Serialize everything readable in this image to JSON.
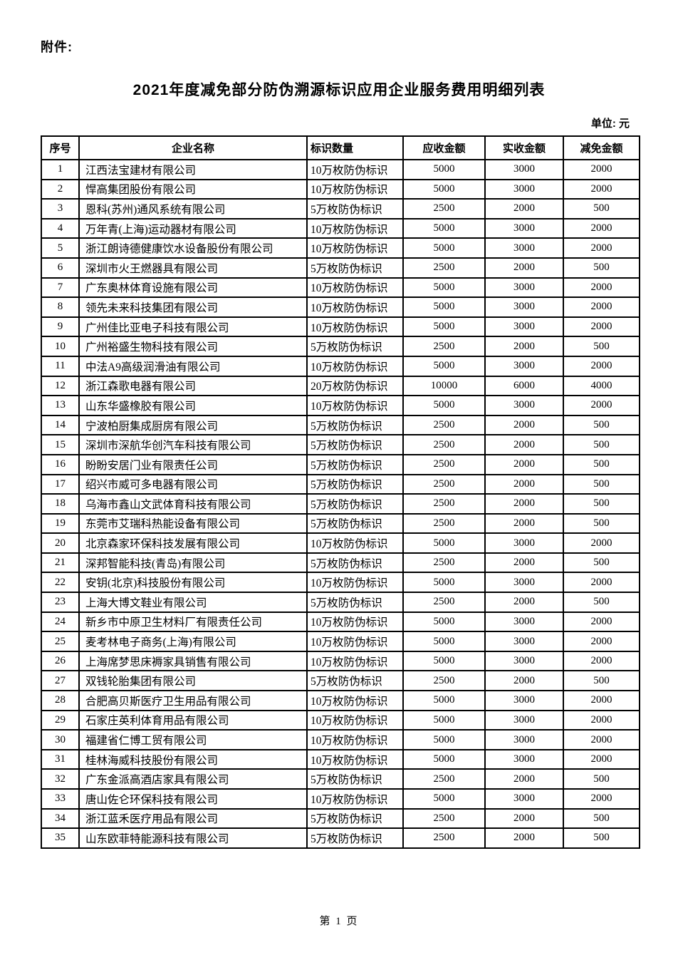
{
  "document": {
    "attachment_label": "附件:",
    "title": "2021年度减免部分防伪溯源标识应用企业服务费用明细列表",
    "unit_label": "单位: 元",
    "footer": "第 1 页"
  },
  "table": {
    "columns": [
      "序号",
      "企业名称",
      "标识数量",
      "应收金额",
      "实收金额",
      "减免金额"
    ],
    "rows": [
      [
        "1",
        "江西法宝建材有限公司",
        "10万枚防伪标识",
        "5000",
        "3000",
        "2000"
      ],
      [
        "2",
        "悍高集团股份有限公司",
        "10万枚防伪标识",
        "5000",
        "3000",
        "2000"
      ],
      [
        "3",
        "恩科(苏州)通风系统有限公司",
        "5万枚防伪标识",
        "2500",
        "2000",
        "500"
      ],
      [
        "4",
        "万年青(上海)运动器材有限公司",
        "10万枚防伪标识",
        "5000",
        "3000",
        "2000"
      ],
      [
        "5",
        "浙江朗诗德健康饮水设备股份有限公司",
        "10万枚防伪标识",
        "5000",
        "3000",
        "2000"
      ],
      [
        "6",
        "深圳市火王燃器具有限公司",
        "5万枚防伪标识",
        "2500",
        "2000",
        "500"
      ],
      [
        "7",
        "广东奥林体育设施有限公司",
        "10万枚防伪标识",
        "5000",
        "3000",
        "2000"
      ],
      [
        "8",
        "领先未来科技集团有限公司",
        "10万枚防伪标识",
        "5000",
        "3000",
        "2000"
      ],
      [
        "9",
        "广州佳比亚电子科技有限公司",
        "10万枚防伪标识",
        "5000",
        "3000",
        "2000"
      ],
      [
        "10",
        "广州裕盛生物科技有限公司",
        "5万枚防伪标识",
        "2500",
        "2000",
        "500"
      ],
      [
        "11",
        "中法A9高级润滑油有限公司",
        "10万枚防伪标识",
        "5000",
        "3000",
        "2000"
      ],
      [
        "12",
        "浙江森歌电器有限公司",
        "20万枚防伪标识",
        "10000",
        "6000",
        "4000"
      ],
      [
        "13",
        "山东华盛橡胶有限公司",
        "10万枚防伪标识",
        "5000",
        "3000",
        "2000"
      ],
      [
        "14",
        "宁波柏厨集成厨房有限公司",
        "5万枚防伪标识",
        "2500",
        "2000",
        "500"
      ],
      [
        "15",
        "深圳市深航华创汽车科技有限公司",
        "5万枚防伪标识",
        "2500",
        "2000",
        "500"
      ],
      [
        "16",
        "盼盼安居门业有限责任公司",
        "5万枚防伪标识",
        "2500",
        "2000",
        "500"
      ],
      [
        "17",
        "绍兴市威可多电器有限公司",
        "5万枚防伪标识",
        "2500",
        "2000",
        "500"
      ],
      [
        "18",
        "乌海市鑫山文武体育科技有限公司",
        "5万枚防伪标识",
        "2500",
        "2000",
        "500"
      ],
      [
        "19",
        "东莞市艾瑞科热能设备有限公司",
        "5万枚防伪标识",
        "2500",
        "2000",
        "500"
      ],
      [
        "20",
        "北京森家环保科技发展有限公司",
        "10万枚防伪标识",
        "5000",
        "3000",
        "2000"
      ],
      [
        "21",
        "深邦智能科技(青岛)有限公司",
        "5万枚防伪标识",
        "2500",
        "2000",
        "500"
      ],
      [
        "22",
        "安钥(北京)科技股份有限公司",
        "10万枚防伪标识",
        "5000",
        "3000",
        "2000"
      ],
      [
        "23",
        "上海大博文鞋业有限公司",
        "5万枚防伪标识",
        "2500",
        "2000",
        "500"
      ],
      [
        "24",
        "新乡市中原卫生材料厂有限责任公司",
        "10万枚防伪标识",
        "5000",
        "3000",
        "2000"
      ],
      [
        "25",
        "麦考林电子商务(上海)有限公司",
        "10万枚防伪标识",
        "5000",
        "3000",
        "2000"
      ],
      [
        "26",
        "上海席梦思床褥家具销售有限公司",
        "10万枚防伪标识",
        "5000",
        "3000",
        "2000"
      ],
      [
        "27",
        "双钱轮胎集团有限公司",
        "5万枚防伪标识",
        "2500",
        "2000",
        "500"
      ],
      [
        "28",
        "合肥高贝斯医疗卫生用品有限公司",
        "10万枚防伪标识",
        "5000",
        "3000",
        "2000"
      ],
      [
        "29",
        "石家庄英利体育用品有限公司",
        "10万枚防伪标识",
        "5000",
        "3000",
        "2000"
      ],
      [
        "30",
        "福建省仁博工贸有限公司",
        "10万枚防伪标识",
        "5000",
        "3000",
        "2000"
      ],
      [
        "31",
        "桂林海威科技股份有限公司",
        "10万枚防伪标识",
        "5000",
        "3000",
        "2000"
      ],
      [
        "32",
        "广东金派高酒店家具有限公司",
        "5万枚防伪标识",
        "2500",
        "2000",
        "500"
      ],
      [
        "33",
        "唐山佐仑环保科技有限公司",
        "10万枚防伪标识",
        "5000",
        "3000",
        "2000"
      ],
      [
        "34",
        "浙江蓝禾医疗用品有限公司",
        "5万枚防伪标识",
        "2500",
        "2000",
        "500"
      ],
      [
        "35",
        "山东欧菲特能源科技有限公司",
        "5万枚防伪标识",
        "2500",
        "2000",
        "500"
      ]
    ]
  }
}
